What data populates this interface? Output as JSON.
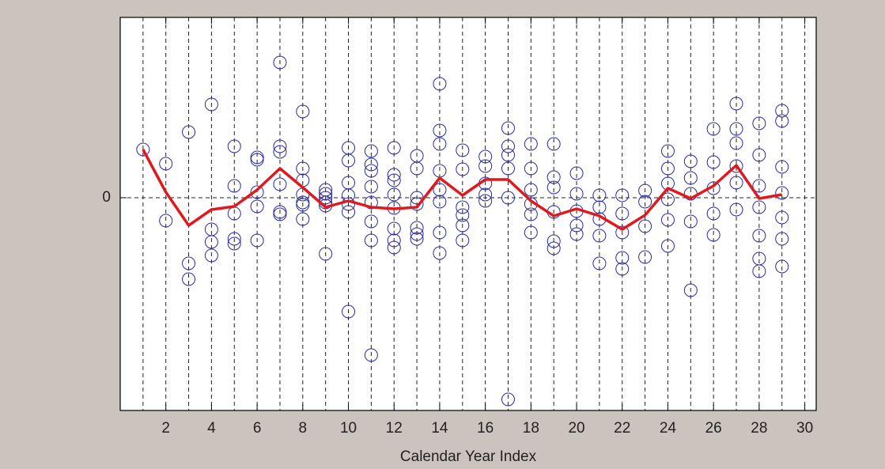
{
  "chart_data": {
    "type": "scatter",
    "xlabel": "Calendar Year Index",
    "xlim": [
      0,
      30.5
    ],
    "ylim": [
      -2.69,
      2.28
    ],
    "xticks": [
      2,
      4,
      6,
      8,
      10,
      12,
      14,
      16,
      18,
      20,
      22,
      24,
      26,
      28,
      30
    ],
    "yticks": [
      0
    ],
    "x_gridlines": [
      1,
      2,
      3,
      4,
      5,
      6,
      7,
      8,
      9,
      10,
      11,
      12,
      13,
      14,
      15,
      16,
      17,
      18,
      19,
      20,
      21,
      22,
      23,
      24,
      25,
      26,
      27,
      28,
      29,
      30
    ],
    "grid": true,
    "marker_color": "#2a2aa6",
    "groups": [
      {
        "x": 1,
        "values": [
          0.61
        ]
      },
      {
        "x": 2,
        "values": [
          0.43,
          -0.29
        ]
      },
      {
        "x": 3,
        "values": [
          0.83,
          -0.83,
          -1.03
        ]
      },
      {
        "x": 4,
        "values": [
          1.18,
          -0.4,
          -0.56,
          -0.73
        ]
      },
      {
        "x": 5,
        "values": [
          0.65,
          0.15,
          -0.2,
          -0.52,
          -0.58
        ]
      },
      {
        "x": 6,
        "values": [
          0.51,
          0.48,
          0.07,
          -0.11,
          -0.54
        ]
      },
      {
        "x": 7,
        "values": [
          1.71,
          0.65,
          0.58,
          0.17,
          -0.18,
          -0.21
        ]
      },
      {
        "x": 8,
        "values": [
          1.09,
          0.37,
          0.22,
          0.04,
          -0.06,
          -0.09,
          -0.27
        ]
      },
      {
        "x": 9,
        "values": [
          0.1,
          0.05,
          0,
          -0.06,
          -0.1,
          -0.71
        ]
      },
      {
        "x": 10,
        "values": [
          0.63,
          0.47,
          0.19,
          0.03,
          -0.08,
          -0.18,
          -1.44
        ]
      },
      {
        "x": 11,
        "values": [
          0.59,
          0.42,
          0.34,
          0.14,
          -0.06,
          -0.3,
          -0.54,
          -1.99
        ]
      },
      {
        "x": 12,
        "values": [
          0.63,
          0.29,
          0.22,
          0.04,
          -0.13,
          -0.39,
          -0.54,
          -0.63
        ]
      },
      {
        "x": 13,
        "values": [
          0.53,
          0.37,
          0,
          -0.08,
          -0.38,
          -0.46,
          -0.52
        ]
      },
      {
        "x": 14,
        "values": [
          1.44,
          0.85,
          0.68,
          0.34,
          0.1,
          -0.05,
          -0.44,
          -0.7
        ]
      },
      {
        "x": 15,
        "values": [
          0.6,
          0.36,
          -0.12,
          -0.22,
          -0.35,
          -0.54
        ]
      },
      {
        "x": 16,
        "values": [
          0.52,
          0.4,
          0.18,
          0.04,
          -0.04
        ]
      },
      {
        "x": 17,
        "values": [
          0.88,
          0.65,
          0.54,
          0.37,
          0,
          -2.55
        ]
      },
      {
        "x": 18,
        "values": [
          0.68,
          0.37,
          0.1,
          -0.08,
          -0.21,
          -0.44
        ]
      },
      {
        "x": 19,
        "values": [
          0.68,
          0.26,
          0.13,
          -0.18,
          -0.55,
          -0.64
        ]
      },
      {
        "x": 20,
        "values": [
          0.31,
          0.05,
          -0.17,
          -0.35,
          -0.46
        ]
      },
      {
        "x": 21,
        "values": [
          0.03,
          -0.12,
          -0.27,
          -0.48,
          -0.83
        ]
      },
      {
        "x": 22,
        "values": [
          0.03,
          -0.2,
          -0.44,
          -0.76,
          -0.9
        ]
      },
      {
        "x": 23,
        "values": [
          0.09,
          -0.05,
          -0.36,
          -0.75
        ]
      },
      {
        "x": 24,
        "values": [
          0.59,
          0.37,
          0.18,
          -0.02,
          -0.28,
          -0.61
        ]
      },
      {
        "x": 25,
        "values": [
          0.46,
          0.25,
          0.05,
          -0.3,
          -1.17
        ]
      },
      {
        "x": 26,
        "values": [
          0.87,
          0.45,
          0.12,
          -0.2,
          -0.47
        ]
      },
      {
        "x": 27,
        "values": [
          1.19,
          0.87,
          0.69,
          0.4,
          0.19,
          -0.15
        ]
      },
      {
        "x": 28,
        "values": [
          0.94,
          0.54,
          0.15,
          -0.12,
          -0.48,
          -0.77,
          -0.93
        ]
      },
      {
        "x": 29,
        "values": [
          1.1,
          0.97,
          0.39,
          0.06,
          -0.25,
          -0.52,
          -0.87
        ]
      }
    ],
    "line": {
      "type": "line",
      "color": "#e0191f",
      "x": [
        1,
        2,
        3,
        4,
        5,
        6,
        7,
        8,
        9,
        10,
        11,
        12,
        13,
        14,
        15,
        16,
        17,
        18,
        19,
        20,
        21,
        22,
        23,
        24,
        25,
        26,
        27,
        28,
        29
      ],
      "values": [
        0.61,
        0.07,
        -0.35,
        -0.15,
        -0.11,
        0.1,
        0.37,
        0.13,
        -0.12,
        -0.04,
        -0.12,
        -0.14,
        -0.12,
        0.25,
        0.03,
        0.23,
        0.23,
        -0.04,
        -0.23,
        -0.14,
        -0.23,
        -0.4,
        -0.22,
        0.12,
        -0.01,
        0.15,
        0.41,
        -0.01,
        0.04
      ]
    }
  }
}
